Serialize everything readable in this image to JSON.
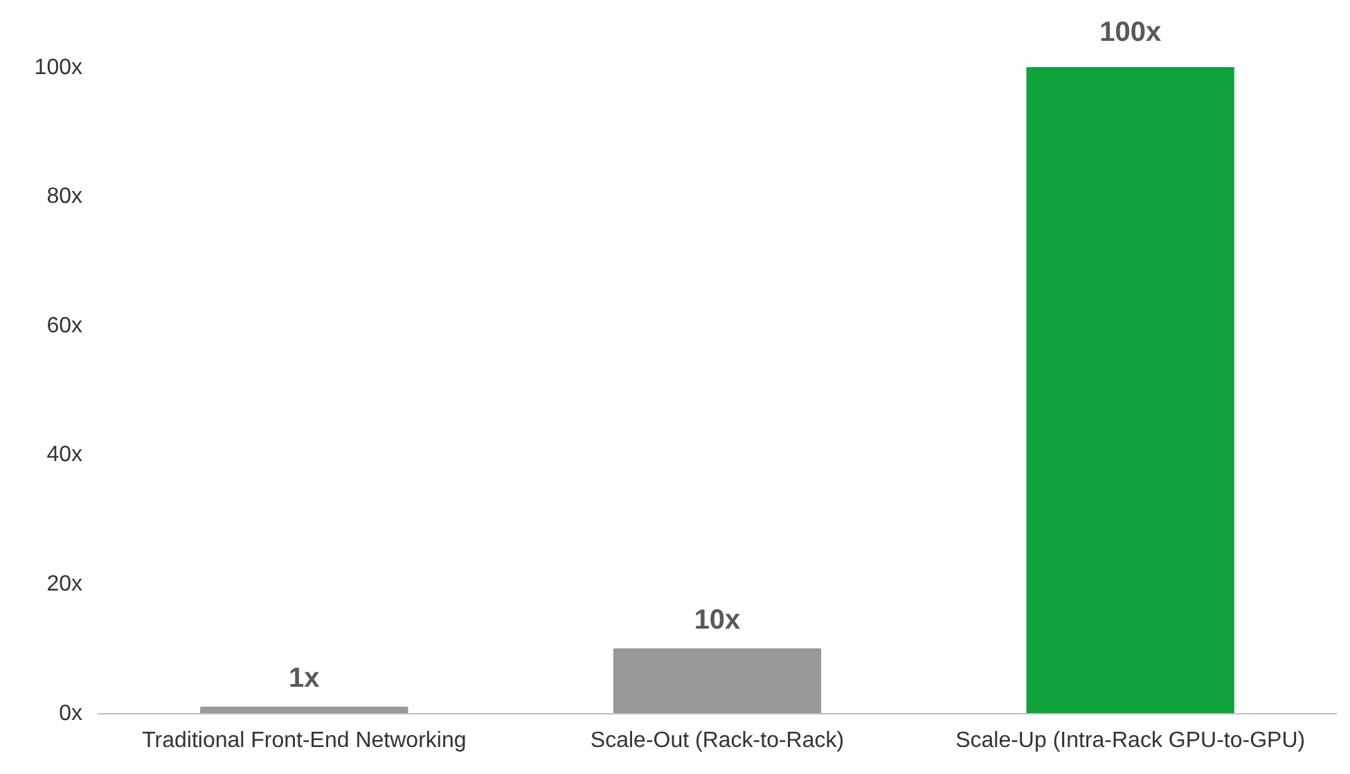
{
  "chart_data": {
    "type": "bar",
    "categories": [
      "Traditional Front-End Networking",
      "Scale-Out (Rack-to-Rack)",
      "Scale-Up (Intra-Rack GPU-to-GPU)"
    ],
    "values": [
      1,
      10,
      100
    ],
    "colors": [
      "#999999",
      "#999999",
      "#11a33b"
    ],
    "value_labels": [
      "1x",
      "10x",
      "100x"
    ],
    "ylim": [
      0,
      100
    ],
    "yticks": [
      {
        "value": 0,
        "label": "0x"
      },
      {
        "value": 20,
        "label": "20x"
      },
      {
        "value": 40,
        "label": "40x"
      },
      {
        "value": 60,
        "label": "60x"
      },
      {
        "value": 80,
        "label": "80x"
      },
      {
        "value": 100,
        "label": "100x"
      }
    ],
    "grid": false
  }
}
